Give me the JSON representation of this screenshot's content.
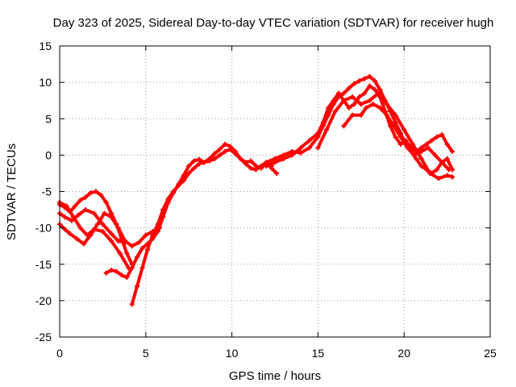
{
  "chart_data": {
    "type": "scatter",
    "title": "Day 323 of 2025, Sidereal Day-to-day VTEC variation (SDTVAR) for receiver hugh",
    "xlabel": "GPS time / hours",
    "ylabel": "SDTVAR / TECUs",
    "xlim": [
      0,
      25
    ],
    "ylim": [
      -25,
      15
    ],
    "xticks": [
      0,
      5,
      10,
      15,
      20,
      25
    ],
    "yticks": [
      15,
      10,
      5,
      0,
      -5,
      -10,
      -15,
      -20,
      -25
    ],
    "grid": true,
    "marker_color": "#ff0000",
    "series": [
      {
        "x": [
          0,
          0.3,
          0.6,
          0.9,
          1.2,
          1.5,
          1.8,
          2.1,
          2.4,
          2.7,
          3.0,
          3.3,
          3.6,
          3.9,
          4.2
        ],
        "y": [
          -6.8,
          -7.2,
          -7.8,
          -7.0,
          -6.2,
          -5.8,
          -5.2,
          -5.0,
          -5.5,
          -6.5,
          -8.0,
          -9.5,
          -11.5,
          -13.5,
          -15.0
        ]
      },
      {
        "x": [
          0,
          0.3,
          0.6,
          1.0,
          1.4,
          1.8,
          2.2,
          2.6,
          3.0,
          3.4,
          3.8,
          4.2,
          4.6,
          5.0,
          5.4,
          5.8
        ],
        "y": [
          -9.5,
          -10.2,
          -10.8,
          -11.5,
          -12.2,
          -11.0,
          -9.5,
          -8.0,
          -8.5,
          -10.0,
          -11.8,
          -12.5,
          -12.0,
          -11.0,
          -10.5,
          -10.0
        ]
      },
      {
        "x": [
          0,
          0.3,
          0.7,
          1.1,
          1.5,
          2.0,
          2.5,
          3.0,
          3.4,
          3.8
        ],
        "y": [
          -8.0,
          -8.5,
          -9.0,
          -8.2,
          -7.5,
          -8.0,
          -9.5,
          -10.8,
          -11.8,
          -12.0
        ]
      },
      {
        "x": [
          0,
          0.4,
          0.8,
          1.2,
          1.6,
          2.0,
          2.5,
          3.0,
          3.5,
          4.0
        ],
        "y": [
          -6.5,
          -7.0,
          -8.5,
          -10.0,
          -11.0,
          -10.2,
          -10.5,
          -11.8,
          -13.5,
          -15.5
        ]
      },
      {
        "x": [
          2.7,
          3.0,
          3.3,
          3.6,
          3.9,
          4.2,
          4.5,
          4.8,
          5.1,
          5.4,
          5.7,
          6.0,
          6.3,
          6.6,
          6.9,
          7.2,
          7.5,
          7.8,
          8.1,
          8.4,
          8.7,
          9.0,
          9.3,
          9.6,
          9.9,
          10.2,
          10.5,
          10.8,
          11.1,
          11.4,
          11.7,
          12.0,
          12.3
        ],
        "y": [
          -16.2,
          -15.8,
          -16.0,
          -16.5,
          -16.8,
          -15.5,
          -14.0,
          -12.8,
          -12.2,
          -11.5,
          -10.5,
          -8.5,
          -6.5,
          -5.2,
          -4.0,
          -2.8,
          -1.5,
          -0.8,
          -0.6,
          -1.0,
          -0.5,
          0.2,
          0.8,
          1.5,
          1.2,
          0.5,
          -0.5,
          -1.0,
          -0.8,
          -1.5,
          -1.8,
          -1.2,
          -1.5
        ]
      },
      {
        "x": [
          4.2,
          4.5,
          4.8,
          5.1,
          5.4,
          5.7,
          6.0,
          6.3,
          6.6,
          6.9,
          7.2,
          7.5,
          7.8,
          8.1,
          8.4,
          8.7,
          9.0,
          9.3,
          9.6,
          9.9,
          10.2,
          10.5,
          10.8,
          11.1,
          11.4,
          11.7,
          12.0,
          12.3,
          12.6
        ],
        "y": [
          -20.5,
          -18.0,
          -15.5,
          -13.0,
          -11.0,
          -9.5,
          -7.5,
          -6.0,
          -5.0,
          -4.2,
          -3.5,
          -2.5,
          -1.8,
          -1.2,
          -1.0,
          -0.8,
          -0.5,
          0.0,
          0.5,
          0.8,
          0.2,
          -0.5,
          -1.2,
          -1.8,
          -2.0,
          -1.5,
          -1.0,
          -1.8,
          -2.5
        ]
      },
      {
        "x": [
          12.0,
          12.5,
          13.0,
          13.5,
          14.0,
          14.5,
          15.0,
          15.3,
          15.6,
          15.9,
          16.2,
          16.5,
          16.8,
          17.1,
          17.4,
          17.7,
          18.0,
          18.3,
          18.6,
          18.9,
          19.2,
          19.5,
          19.8,
          20.1,
          20.4,
          20.7,
          21.0,
          21.3,
          21.6,
          21.9,
          22.2,
          22.5,
          22.8
        ],
        "y": [
          -1.0,
          -0.5,
          0.0,
          0.5,
          0.3,
          1.0,
          2.5,
          4.0,
          5.5,
          7.0,
          8.0,
          8.5,
          9.2,
          9.8,
          10.2,
          10.5,
          10.8,
          10.2,
          9.0,
          7.5,
          6.0,
          4.5,
          3.0,
          1.5,
          0.5,
          -0.5,
          -1.5,
          -2.0,
          -2.5,
          -2.0,
          -1.0,
          -0.5,
          -2.0
        ]
      },
      {
        "x": [
          12.0,
          12.5,
          13.0,
          13.5,
          14.0,
          14.5,
          15.0,
          15.3,
          15.6,
          15.9,
          16.2,
          16.5,
          16.8,
          17.1,
          17.4,
          17.7,
          18.0,
          18.3,
          18.6,
          18.9,
          19.2,
          19.5,
          19.8,
          20.1,
          20.4,
          20.7,
          21.0,
          21.3,
          21.6,
          21.9,
          22.2,
          22.5,
          22.8
        ],
        "y": [
          -1.5,
          -1.0,
          -0.5,
          0.0,
          1.0,
          2.0,
          3.0,
          4.5,
          6.5,
          7.5,
          8.5,
          7.5,
          6.5,
          7.0,
          8.0,
          8.5,
          9.5,
          9.0,
          8.0,
          6.0,
          4.0,
          2.5,
          1.5,
          2.0,
          1.0,
          0.5,
          1.0,
          1.5,
          2.0,
          2.5,
          2.8,
          1.5,
          0.5
        ]
      },
      {
        "x": [
          15.0,
          15.5,
          16.0,
          16.5,
          17.0,
          17.5,
          18.0,
          18.5,
          19.0,
          19.5,
          20.0,
          20.5,
          21.0,
          21.5,
          22.0,
          22.5,
          22.8
        ],
        "y": [
          1.0,
          3.5,
          6.0,
          7.5,
          8.0,
          7.0,
          7.5,
          8.5,
          7.0,
          5.5,
          3.5,
          1.5,
          -0.5,
          -2.5,
          -3.2,
          -2.8,
          -3.0
        ]
      },
      {
        "x": [
          16.5,
          17.0,
          17.5,
          17.8,
          18.2,
          18.6,
          19.0,
          19.4,
          19.8,
          20.2,
          20.6,
          21.0,
          21.4,
          21.8,
          22.2,
          22.6
        ],
        "y": [
          4.0,
          5.5,
          5.5,
          6.5,
          7.0,
          6.5,
          5.5,
          4.0,
          2.5,
          1.0,
          0.0,
          0.5,
          1.0,
          0.0,
          -1.0,
          -2.0
        ]
      }
    ]
  }
}
